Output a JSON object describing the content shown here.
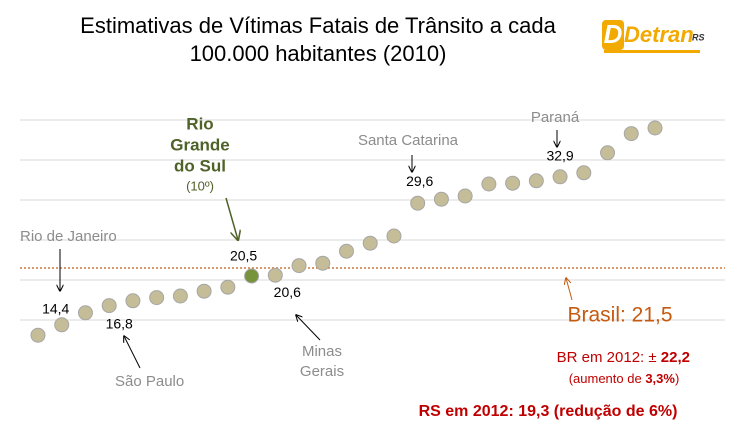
{
  "chart_data": {
    "type": "dot",
    "title": [
      "Estimativas de Vítimas Fatais de Trânsito a cada",
      "100.000 habitantes (2010)"
    ],
    "logo": {
      "name": "Detran",
      "suffix": "RS"
    },
    "categories": [
      null,
      null,
      null,
      null,
      null,
      null,
      null,
      null,
      null,
      null,
      null,
      null,
      null,
      null,
      null,
      null,
      null,
      null,
      null,
      null,
      null,
      null,
      null,
      null,
      null,
      null,
      null
    ],
    "values": [
      13.1,
      14.4,
      15.9,
      16.8,
      17.4,
      17.8,
      18.0,
      18.6,
      19.1,
      20.5,
      20.6,
      21.8,
      22.1,
      23.6,
      24.6,
      25.5,
      29.6,
      30.1,
      30.5,
      32.0,
      32.1,
      32.4,
      32.9,
      33.4,
      35.9,
      38.3,
      39.0
    ],
    "value_labels": [
      null,
      "14,4",
      null,
      "16,8",
      null,
      null,
      null,
      null,
      null,
      "20,5",
      "20,6",
      null,
      null,
      null,
      null,
      null,
      "29,6",
      null,
      null,
      null,
      null,
      null,
      "32,9",
      null,
      null,
      null,
      null
    ],
    "color": "#c4bd97",
    "point_colors": [
      "#c4bd97",
      "#c4bd97",
      "#c4bd97",
      "#c4bd97",
      "#c4bd97",
      "#c4bd97",
      "#c4bd97",
      "#c4bd97",
      "#c4bd97",
      "#77933c",
      "#c4bd97",
      "#c4bd97",
      "#c4bd97",
      "#c4bd97",
      "#c4bd97",
      "#c4bd97",
      "#c4bd97",
      "#c4bd97",
      "#c4bd97",
      "#c4bd97",
      "#c4bd97",
      "#c4bd97",
      "#c4bd97",
      "#c4bd97",
      "#c4bd97",
      "#c4bd97",
      "#c4bd97"
    ],
    "ylim": [
      10,
      42.5
    ],
    "yticks": [
      15,
      20,
      25,
      30,
      35,
      40
    ],
    "grid": true,
    "reference_line": {
      "value": 21.5,
      "label": "Brasil: 21,5",
      "color": "#c55a11"
    },
    "annotations": [
      "Rio de Janeiro",
      "São Paulo",
      "Minas",
      "Gerais",
      "Santa Catarina",
      "Paraná"
    ],
    "highlight": {
      "lines": [
        "Rio",
        "Grande",
        "do Sul"
      ],
      "rank": "(10º)"
    },
    "notes": {
      "br_2012": [
        "BR em 2012:  ± ",
        "22,2"
      ],
      "br_increase": [
        "(aumento de ",
        "3,3%",
        ")"
      ],
      "rs_2012": "RS em 2012:  19,3 (redução de 6%)"
    }
  }
}
